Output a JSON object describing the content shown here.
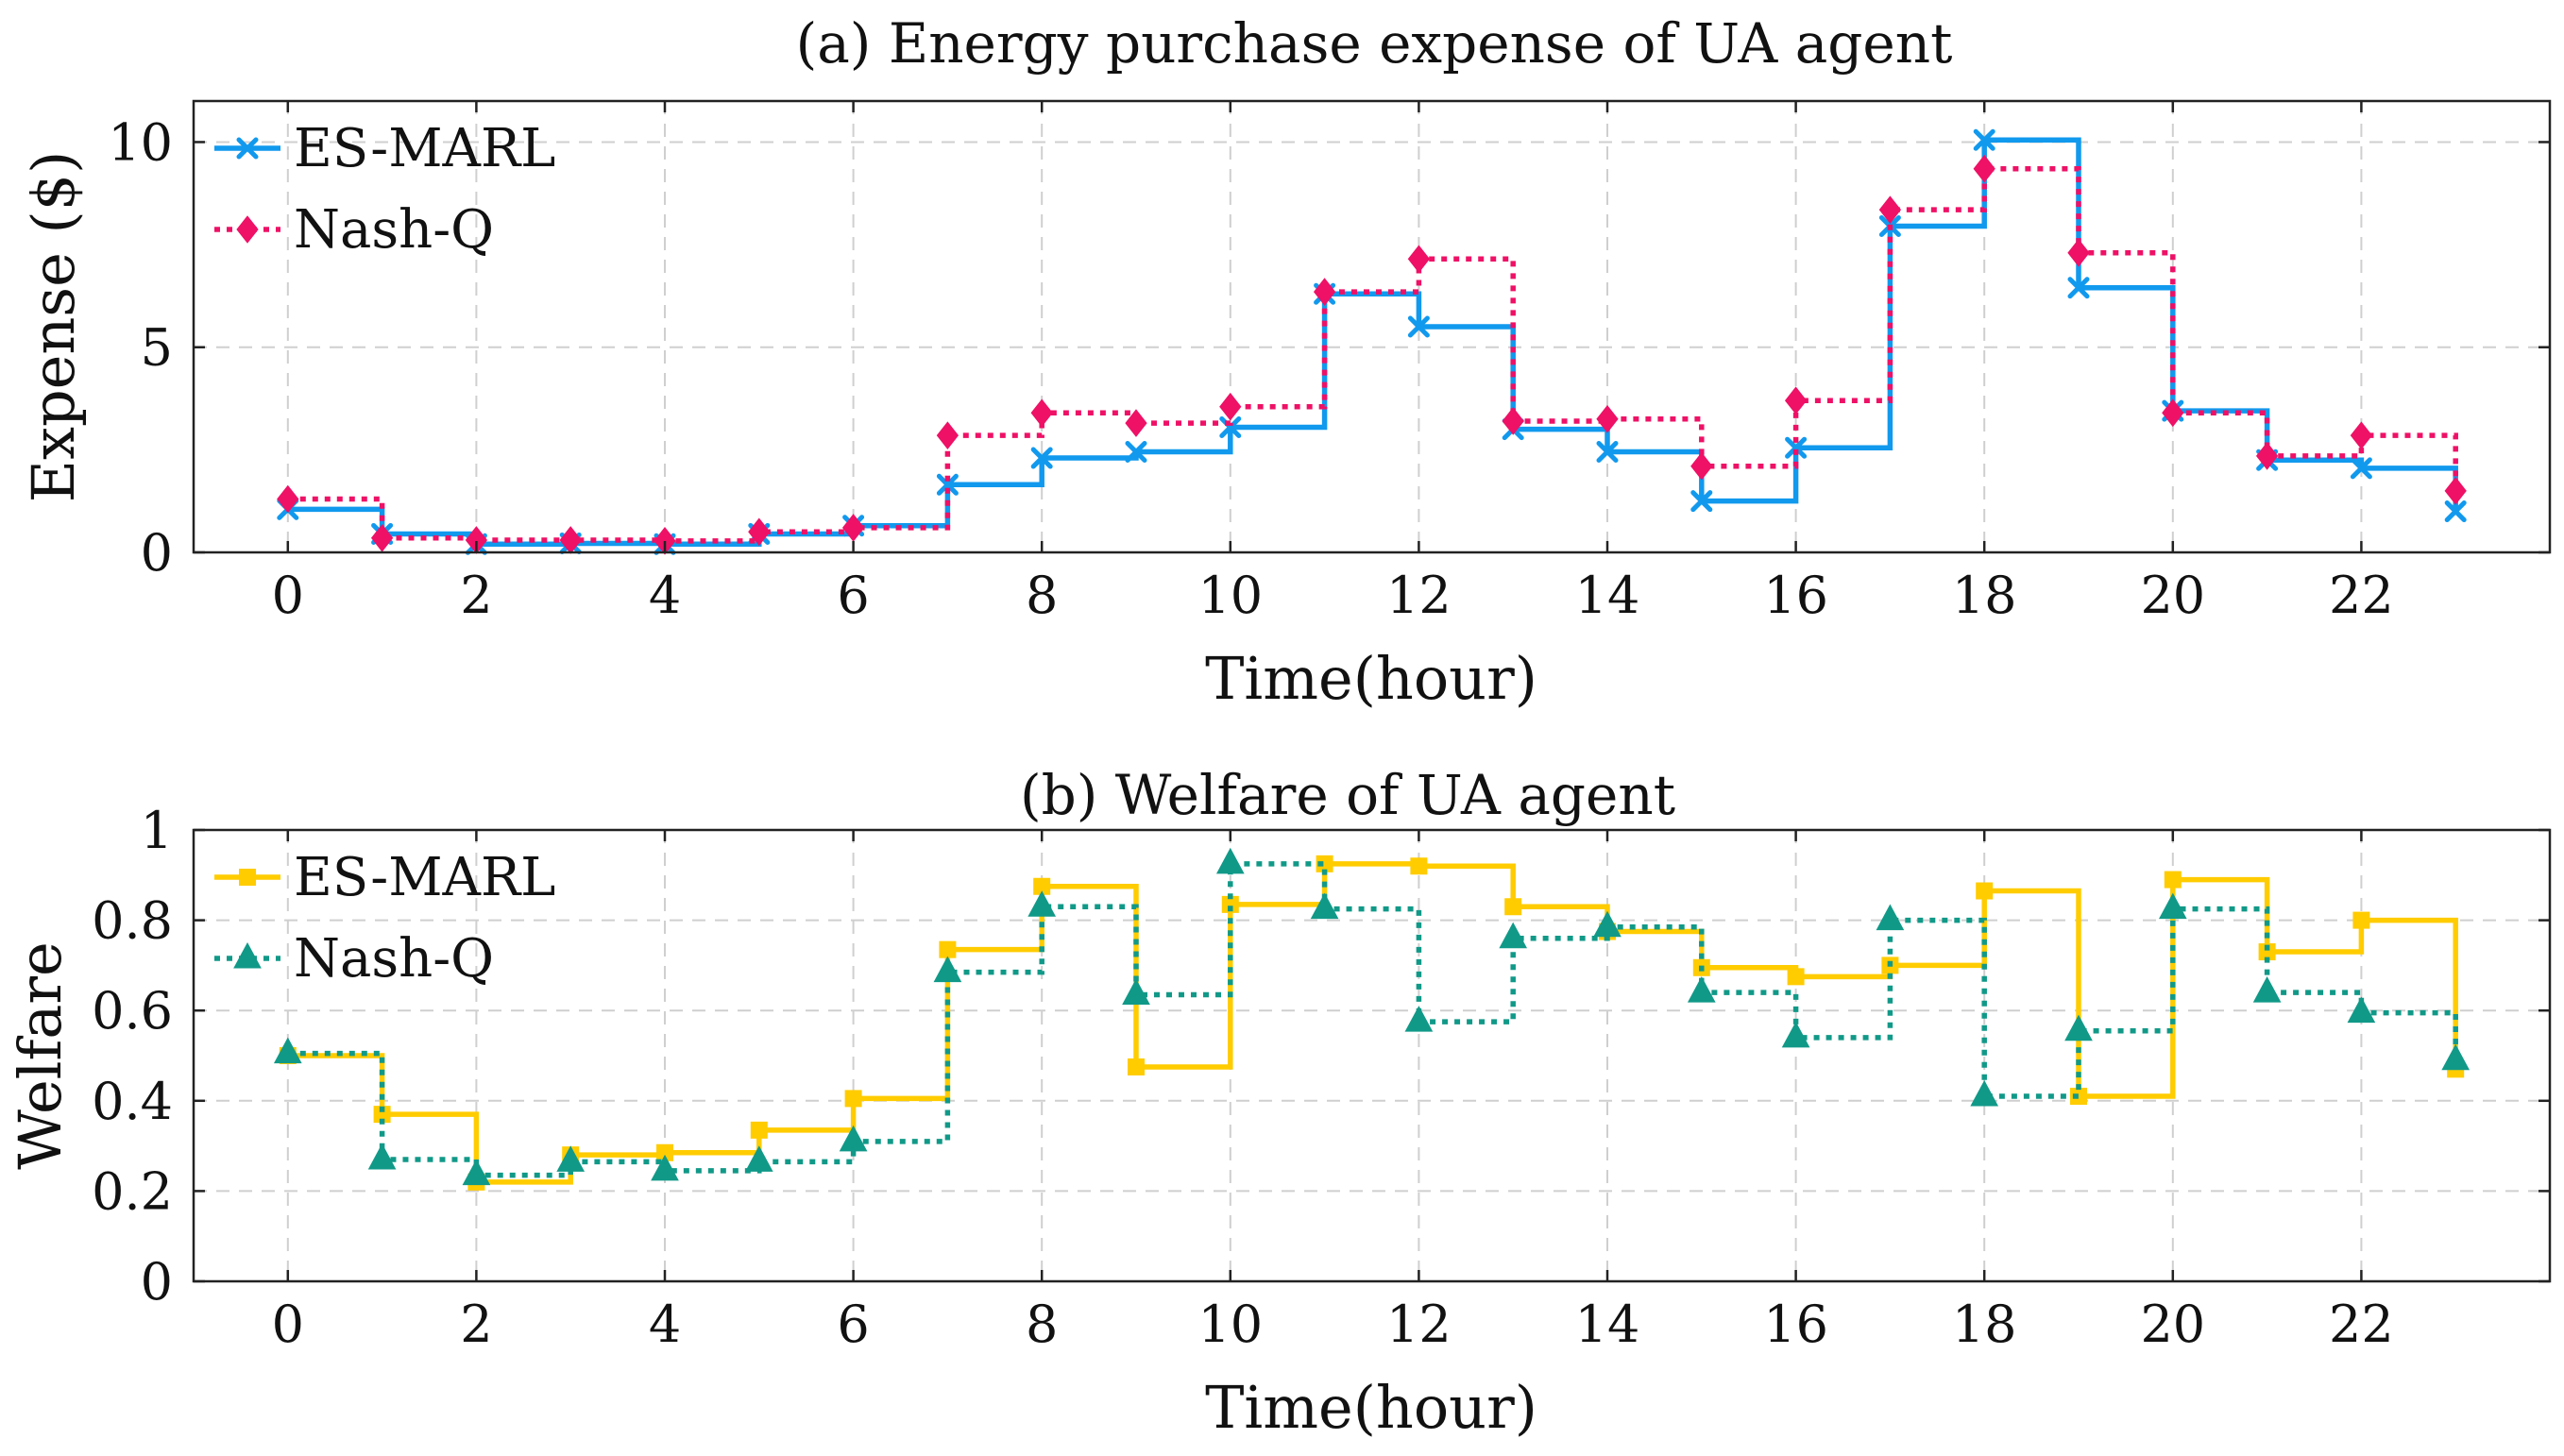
{
  "chart_data": [
    {
      "type": "line",
      "step": "post",
      "title": "(a) Energy purchase expense of UA agent",
      "xlabel": "Time(hour)",
      "ylabel": "Expense ($)",
      "xlim": [
        -1,
        24
      ],
      "ylim": [
        0,
        11
      ],
      "xticks": [
        0,
        2,
        4,
        6,
        8,
        10,
        12,
        14,
        16,
        18,
        20,
        22
      ],
      "yticks": [
        0,
        5,
        10
      ],
      "grid": true,
      "legend_position": "top-left",
      "x": [
        0,
        1,
        2,
        3,
        4,
        5,
        6,
        7,
        8,
        9,
        10,
        11,
        12,
        13,
        14,
        15,
        16,
        17,
        18,
        19,
        20,
        21,
        22,
        23
      ],
      "series": [
        {
          "name": "ES-MARL",
          "color": "#1199ee",
          "line_style": "solid",
          "marker": "x",
          "values": [
            1.05,
            0.45,
            0.2,
            0.22,
            0.2,
            0.45,
            0.65,
            1.65,
            2.3,
            2.45,
            3.05,
            6.3,
            5.5,
            3.0,
            2.45,
            1.25,
            2.55,
            7.95,
            10.05,
            6.45,
            3.45,
            2.25,
            2.05,
            1.0
          ]
        },
        {
          "name": "Nash-Q",
          "color": "#ee1166",
          "line_style": "dotted",
          "marker": "diamond",
          "values": [
            1.3,
            0.35,
            0.3,
            0.3,
            0.28,
            0.5,
            0.6,
            2.85,
            3.4,
            3.15,
            3.55,
            6.35,
            7.15,
            3.2,
            3.25,
            2.1,
            3.7,
            8.35,
            9.35,
            7.3,
            3.4,
            2.35,
            2.85,
            1.5
          ]
        }
      ]
    },
    {
      "type": "line",
      "step": "post",
      "title": "(b) Welfare of UA agent",
      "xlabel": "Time(hour)",
      "ylabel": "Welfare",
      "xlim": [
        -1,
        24
      ],
      "ylim": [
        0,
        1
      ],
      "xticks": [
        0,
        2,
        4,
        6,
        8,
        10,
        12,
        14,
        16,
        18,
        20,
        22
      ],
      "yticks": [
        0,
        0.2,
        0.4,
        0.6,
        0.8,
        1
      ],
      "ytick_labels": [
        "0",
        "0.2",
        "0.4",
        "0.6",
        "0.8",
        "1"
      ],
      "grid": true,
      "legend_position": "top-left",
      "x": [
        0,
        1,
        2,
        3,
        4,
        5,
        6,
        7,
        8,
        9,
        10,
        11,
        12,
        13,
        14,
        15,
        16,
        17,
        18,
        19,
        20,
        21,
        22,
        23
      ],
      "series": [
        {
          "name": "ES-MARL",
          "color": "#ffcc00",
          "line_style": "solid",
          "marker": "square",
          "values": [
            0.5,
            0.37,
            0.22,
            0.28,
            0.285,
            0.335,
            0.405,
            0.735,
            0.875,
            0.475,
            0.835,
            0.925,
            0.92,
            0.83,
            0.775,
            0.695,
            0.675,
            0.7,
            0.865,
            0.41,
            0.89,
            0.73,
            0.8,
            0.47
          ]
        },
        {
          "name": "Nash-Q",
          "color": "#119988",
          "line_style": "dotted",
          "marker": "triangle",
          "values": [
            0.505,
            0.27,
            0.235,
            0.265,
            0.245,
            0.265,
            0.31,
            0.685,
            0.83,
            0.635,
            0.925,
            0.825,
            0.575,
            0.76,
            0.785,
            0.64,
            0.54,
            0.8,
            0.41,
            0.555,
            0.825,
            0.64,
            0.595,
            0.49
          ]
        }
      ]
    }
  ]
}
